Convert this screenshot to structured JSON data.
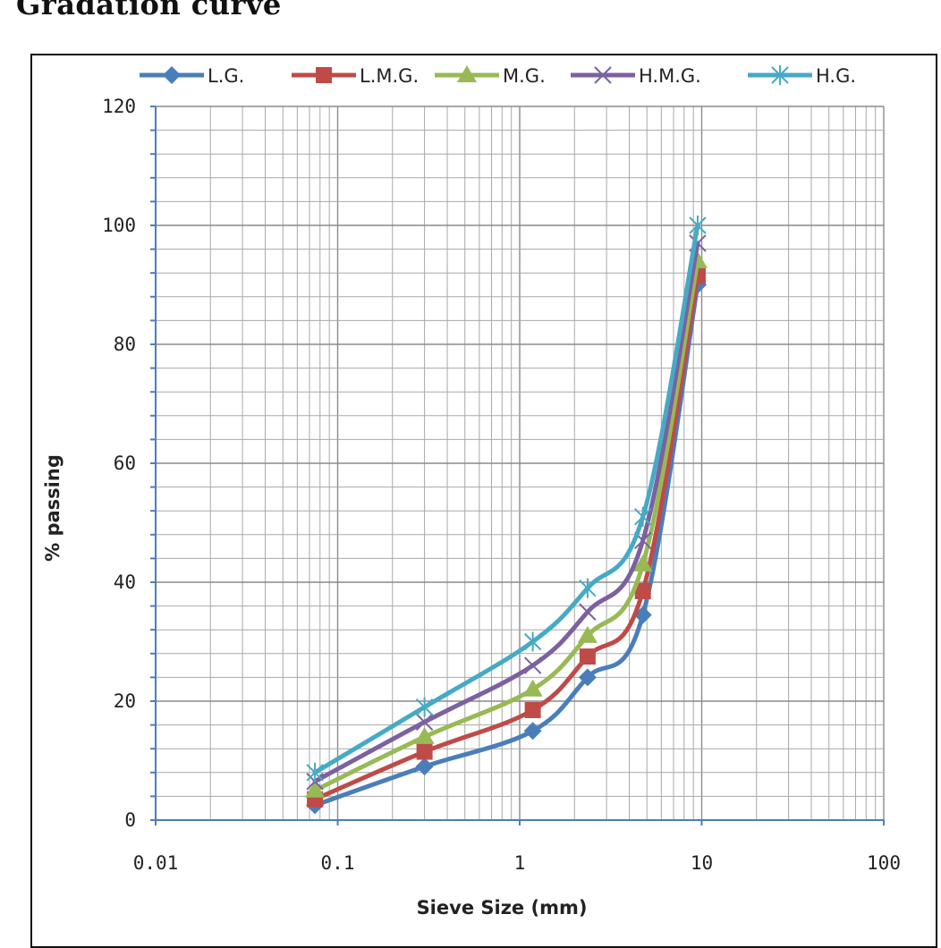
{
  "heading": "Gradation curve",
  "chart_data": {
    "type": "line",
    "title": "",
    "xlabel": "Sieve Size  (mm)",
    "ylabel": "% passing",
    "xscale": "log",
    "xlim": [
      0.01,
      100
    ],
    "ylim": [
      0,
      120
    ],
    "x_ticks": [
      "0.01",
      "0.1",
      "1",
      "10",
      "100"
    ],
    "y_ticks": [
      "0",
      "20",
      "40",
      "60",
      "80",
      "100",
      "120"
    ],
    "y_minor_step": 4,
    "grid": true,
    "legend_position": "top",
    "x": [
      0.075,
      0.3,
      1.18,
      2.36,
      4.75,
      9.5
    ],
    "series": [
      {
        "name": "L.G.",
        "color": "#4a7ebb",
        "marker": "diamond",
        "values": [
          2.5,
          9,
          15,
          24,
          34.5,
          90
        ]
      },
      {
        "name": "L.M.G.",
        "color": "#be4b48",
        "marker": "square",
        "values": [
          3.5,
          11.5,
          18.5,
          27.5,
          38.5,
          91.5
        ]
      },
      {
        "name": "M.G.",
        "color": "#98b954",
        "marker": "triangle",
        "values": [
          5,
          14,
          22,
          31,
          43,
          94
        ]
      },
      {
        "name": "H.M.G.",
        "color": "#7d60a0",
        "marker": "x",
        "values": [
          6.5,
          16.5,
          26,
          35,
          47,
          97
        ]
      },
      {
        "name": "H.G.",
        "color": "#46aac5",
        "marker": "star",
        "values": [
          8,
          19,
          30,
          39,
          51,
          100
        ]
      }
    ]
  }
}
